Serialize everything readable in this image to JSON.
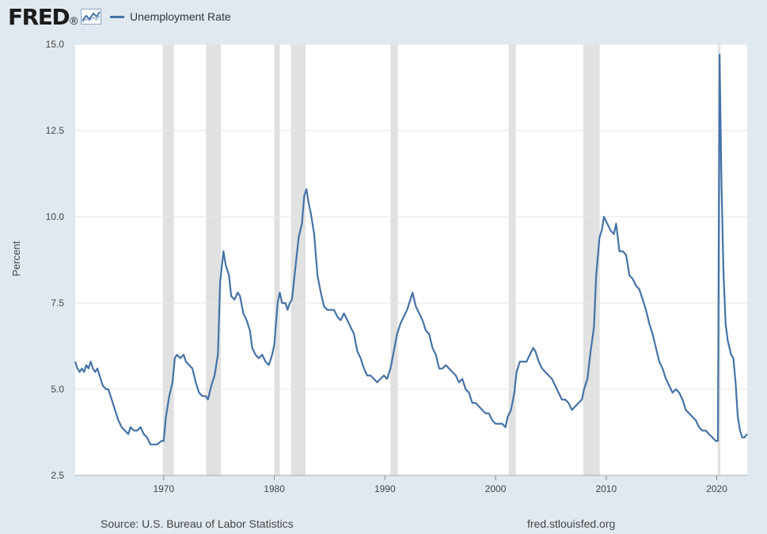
{
  "header": {
    "logo_text": "FRED",
    "logo_mark": "®"
  },
  "legend": {
    "label": "Unemployment Rate",
    "color": "#4572a7"
  },
  "footer": {
    "source": "Source: U.S. Bureau of Labor Statistics",
    "url": "fred.stlouisfed.org"
  },
  "chart_data": {
    "type": "line",
    "ylabel": "Percent",
    "xlabel": "",
    "title": "",
    "ylim": [
      2.5,
      15.0
    ],
    "xlim": [
      1962.0,
      2022.75
    ],
    "y_ticks": [
      "2.5",
      "5.0",
      "7.5",
      "10.0",
      "12.5",
      "15.0"
    ],
    "x_ticks": [
      "1970",
      "1980",
      "1990",
      "2000",
      "2010",
      "2020"
    ],
    "grid": true,
    "colors": {
      "line": "#4572a7",
      "recession": "#e1e1e1",
      "plot_bg": "#ffffff",
      "page_bg": "#e1e9f0"
    },
    "recessions": [
      [
        1969.92,
        1970.92
      ],
      [
        1973.83,
        1975.17
      ],
      [
        1980.0,
        1980.5
      ],
      [
        1981.5,
        1982.83
      ],
      [
        1990.5,
        1991.17
      ],
      [
        2001.17,
        2001.83
      ],
      [
        2007.92,
        2009.42
      ],
      [
        2020.08,
        2020.33
      ]
    ],
    "series": [
      {
        "name": "Unemployment Rate",
        "points": [
          [
            1962.0,
            5.8
          ],
          [
            1962.2,
            5.6
          ],
          [
            1962.4,
            5.5
          ],
          [
            1962.6,
            5.6
          ],
          [
            1962.8,
            5.5
          ],
          [
            1963.0,
            5.7
          ],
          [
            1963.2,
            5.6
          ],
          [
            1963.4,
            5.8
          ],
          [
            1963.6,
            5.6
          ],
          [
            1963.8,
            5.5
          ],
          [
            1964.0,
            5.6
          ],
          [
            1964.2,
            5.4
          ],
          [
            1964.5,
            5.1
          ],
          [
            1964.8,
            5.0
          ],
          [
            1965.0,
            5.0
          ],
          [
            1965.3,
            4.7
          ],
          [
            1965.6,
            4.4
          ],
          [
            1965.9,
            4.1
          ],
          [
            1966.2,
            3.9
          ],
          [
            1966.5,
            3.8
          ],
          [
            1966.8,
            3.7
          ],
          [
            1967.0,
            3.9
          ],
          [
            1967.3,
            3.8
          ],
          [
            1967.6,
            3.8
          ],
          [
            1967.9,
            3.9
          ],
          [
            1968.2,
            3.7
          ],
          [
            1968.5,
            3.6
          ],
          [
            1968.8,
            3.4
          ],
          [
            1969.0,
            3.4
          ],
          [
            1969.4,
            3.4
          ],
          [
            1969.8,
            3.5
          ],
          [
            1970.0,
            3.5
          ],
          [
            1970.2,
            4.2
          ],
          [
            1970.5,
            4.8
          ],
          [
            1970.8,
            5.2
          ],
          [
            1971.0,
            5.9
          ],
          [
            1971.2,
            6.0
          ],
          [
            1971.5,
            5.9
          ],
          [
            1971.8,
            6.0
          ],
          [
            1972.0,
            5.8
          ],
          [
            1972.3,
            5.7
          ],
          [
            1972.6,
            5.6
          ],
          [
            1972.9,
            5.2
          ],
          [
            1973.2,
            4.9
          ],
          [
            1973.5,
            4.8
          ],
          [
            1973.8,
            4.8
          ],
          [
            1974.0,
            4.7
          ],
          [
            1974.3,
            5.1
          ],
          [
            1974.6,
            5.4
          ],
          [
            1974.9,
            6.0
          ],
          [
            1975.1,
            8.1
          ],
          [
            1975.4,
            9.0
          ],
          [
            1975.6,
            8.6
          ],
          [
            1975.9,
            8.3
          ],
          [
            1976.1,
            7.7
          ],
          [
            1976.4,
            7.6
          ],
          [
            1976.7,
            7.8
          ],
          [
            1976.9,
            7.7
          ],
          [
            1977.2,
            7.2
          ],
          [
            1977.5,
            7.0
          ],
          [
            1977.8,
            6.7
          ],
          [
            1978.0,
            6.2
          ],
          [
            1978.3,
            6.0
          ],
          [
            1978.6,
            5.9
          ],
          [
            1978.9,
            6.0
          ],
          [
            1979.2,
            5.8
          ],
          [
            1979.5,
            5.7
          ],
          [
            1979.8,
            6.0
          ],
          [
            1980.0,
            6.3
          ],
          [
            1980.3,
            7.5
          ],
          [
            1980.5,
            7.8
          ],
          [
            1980.7,
            7.5
          ],
          [
            1981.0,
            7.5
          ],
          [
            1981.2,
            7.3
          ],
          [
            1981.4,
            7.5
          ],
          [
            1981.6,
            7.6
          ],
          [
            1981.9,
            8.5
          ],
          [
            1982.2,
            9.4
          ],
          [
            1982.5,
            9.8
          ],
          [
            1982.7,
            10.6
          ],
          [
            1982.9,
            10.8
          ],
          [
            1983.1,
            10.4
          ],
          [
            1983.3,
            10.1
          ],
          [
            1983.6,
            9.5
          ],
          [
            1983.9,
            8.3
          ],
          [
            1984.2,
            7.8
          ],
          [
            1984.5,
            7.4
          ],
          [
            1984.8,
            7.3
          ],
          [
            1985.1,
            7.3
          ],
          [
            1985.4,
            7.3
          ],
          [
            1985.7,
            7.1
          ],
          [
            1986.0,
            7.0
          ],
          [
            1986.3,
            7.2
          ],
          [
            1986.6,
            7.0
          ],
          [
            1986.9,
            6.8
          ],
          [
            1987.2,
            6.6
          ],
          [
            1987.5,
            6.1
          ],
          [
            1987.8,
            5.9
          ],
          [
            1988.1,
            5.6
          ],
          [
            1988.4,
            5.4
          ],
          [
            1988.7,
            5.4
          ],
          [
            1989.0,
            5.3
          ],
          [
            1989.3,
            5.2
          ],
          [
            1989.6,
            5.3
          ],
          [
            1989.9,
            5.4
          ],
          [
            1990.2,
            5.3
          ],
          [
            1990.5,
            5.6
          ],
          [
            1990.8,
            6.1
          ],
          [
            1991.1,
            6.6
          ],
          [
            1991.4,
            6.9
          ],
          [
            1991.7,
            7.1
          ],
          [
            1992.0,
            7.3
          ],
          [
            1992.3,
            7.6
          ],
          [
            1992.5,
            7.8
          ],
          [
            1992.8,
            7.4
          ],
          [
            1993.1,
            7.2
          ],
          [
            1993.4,
            7.0
          ],
          [
            1993.7,
            6.7
          ],
          [
            1994.0,
            6.6
          ],
          [
            1994.3,
            6.2
          ],
          [
            1994.6,
            6.0
          ],
          [
            1994.9,
            5.6
          ],
          [
            1995.2,
            5.6
          ],
          [
            1995.5,
            5.7
          ],
          [
            1995.8,
            5.6
          ],
          [
            1996.1,
            5.5
          ],
          [
            1996.4,
            5.4
          ],
          [
            1996.7,
            5.2
          ],
          [
            1997.0,
            5.3
          ],
          [
            1997.3,
            5.0
          ],
          [
            1997.6,
            4.9
          ],
          [
            1997.9,
            4.6
          ],
          [
            1998.2,
            4.6
          ],
          [
            1998.5,
            4.5
          ],
          [
            1998.8,
            4.4
          ],
          [
            1999.1,
            4.3
          ],
          [
            1999.4,
            4.3
          ],
          [
            1999.7,
            4.1
          ],
          [
            2000.0,
            4.0
          ],
          [
            2000.3,
            4.0
          ],
          [
            2000.6,
            4.0
          ],
          [
            2000.9,
            3.9
          ],
          [
            2001.1,
            4.2
          ],
          [
            2001.4,
            4.4
          ],
          [
            2001.7,
            4.9
          ],
          [
            2001.9,
            5.5
          ],
          [
            2002.2,
            5.8
          ],
          [
            2002.5,
            5.8
          ],
          [
            2002.8,
            5.8
          ],
          [
            2003.1,
            6.0
          ],
          [
            2003.4,
            6.2
          ],
          [
            2003.6,
            6.1
          ],
          [
            2003.9,
            5.8
          ],
          [
            2004.2,
            5.6
          ],
          [
            2004.5,
            5.5
          ],
          [
            2004.8,
            5.4
          ],
          [
            2005.1,
            5.3
          ],
          [
            2005.4,
            5.1
          ],
          [
            2005.7,
            4.9
          ],
          [
            2006.0,
            4.7
          ],
          [
            2006.3,
            4.7
          ],
          [
            2006.6,
            4.6
          ],
          [
            2006.9,
            4.4
          ],
          [
            2007.2,
            4.5
          ],
          [
            2007.5,
            4.6
          ],
          [
            2007.8,
            4.7
          ],
          [
            2008.0,
            5.0
          ],
          [
            2008.3,
            5.3
          ],
          [
            2008.6,
            6.1
          ],
          [
            2008.9,
            6.8
          ],
          [
            2009.1,
            8.3
          ],
          [
            2009.4,
            9.4
          ],
          [
            2009.6,
            9.6
          ],
          [
            2009.8,
            10.0
          ],
          [
            2010.1,
            9.8
          ],
          [
            2010.4,
            9.6
          ],
          [
            2010.7,
            9.5
          ],
          [
            2010.9,
            9.8
          ],
          [
            2011.2,
            9.0
          ],
          [
            2011.5,
            9.0
          ],
          [
            2011.8,
            8.9
          ],
          [
            2012.1,
            8.3
          ],
          [
            2012.4,
            8.2
          ],
          [
            2012.7,
            8.0
          ],
          [
            2013.0,
            7.9
          ],
          [
            2013.3,
            7.6
          ],
          [
            2013.6,
            7.3
          ],
          [
            2013.9,
            6.9
          ],
          [
            2014.2,
            6.6
          ],
          [
            2014.5,
            6.2
          ],
          [
            2014.8,
            5.8
          ],
          [
            2015.1,
            5.6
          ],
          [
            2015.4,
            5.3
          ],
          [
            2015.7,
            5.1
          ],
          [
            2016.0,
            4.9
          ],
          [
            2016.3,
            5.0
          ],
          [
            2016.6,
            4.9
          ],
          [
            2016.9,
            4.7
          ],
          [
            2017.2,
            4.4
          ],
          [
            2017.5,
            4.3
          ],
          [
            2017.8,
            4.2
          ],
          [
            2018.1,
            4.1
          ],
          [
            2018.4,
            3.9
          ],
          [
            2018.7,
            3.8
          ],
          [
            2019.0,
            3.8
          ],
          [
            2019.3,
            3.7
          ],
          [
            2019.6,
            3.6
          ],
          [
            2019.9,
            3.5
          ],
          [
            2020.1,
            3.5
          ],
          [
            2020.25,
            14.7
          ],
          [
            2020.42,
            11.1
          ],
          [
            2020.6,
            8.4
          ],
          [
            2020.8,
            6.9
          ],
          [
            2021.0,
            6.4
          ],
          [
            2021.3,
            6.0
          ],
          [
            2021.5,
            5.9
          ],
          [
            2021.7,
            5.2
          ],
          [
            2021.9,
            4.2
          ],
          [
            2022.1,
            3.8
          ],
          [
            2022.3,
            3.6
          ],
          [
            2022.5,
            3.6
          ],
          [
            2022.75,
            3.7
          ]
        ]
      }
    ]
  }
}
